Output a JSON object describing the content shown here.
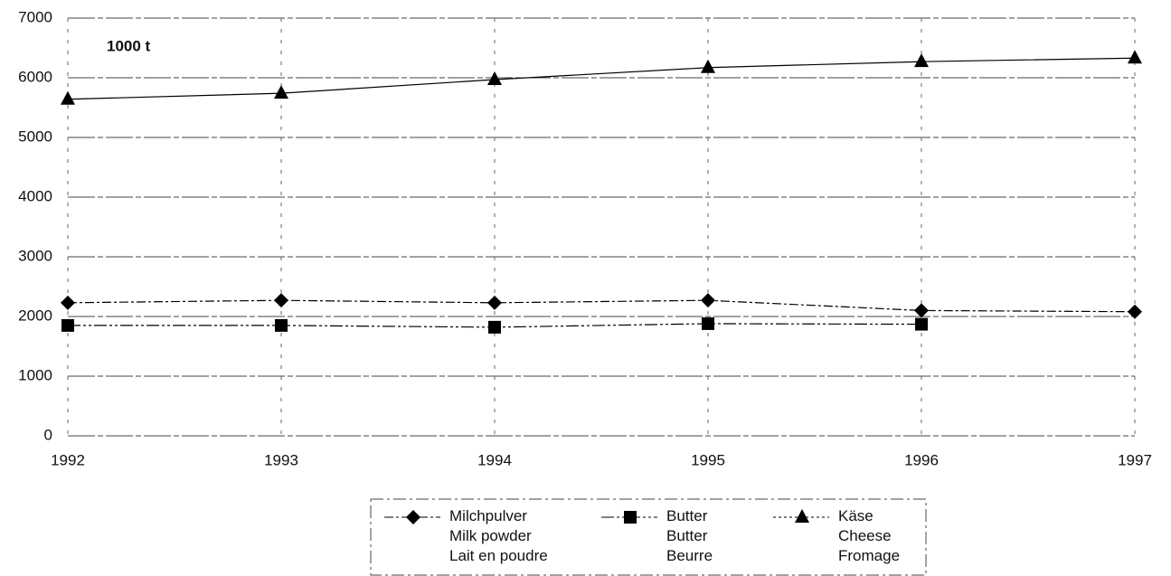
{
  "chart_data": {
    "type": "line",
    "annotations": [
      "1000 t"
    ],
    "x": [
      1992,
      1993,
      1994,
      1995,
      1996,
      1997
    ],
    "xlim": [
      1992,
      1997
    ],
    "xticks": [
      1992,
      1993,
      1994,
      1995,
      1996,
      1997
    ],
    "ylim": [
      0,
      7000
    ],
    "yticks": [
      0,
      1000,
      2000,
      3000,
      4000,
      5000,
      6000,
      7000
    ],
    "grid": true,
    "legend": "bottom",
    "series": [
      {
        "name": "Milchpulver\nMilk powder\nLait en poudre",
        "color": "#000000",
        "marker": "diamond",
        "values": [
          2230,
          2270,
          2230,
          2270,
          2100,
          2080
        ]
      },
      {
        "name": "Butter\nButter\nBeurre",
        "color": "#000000",
        "marker": "square",
        "values": [
          1850,
          1850,
          1820,
          1880,
          1870,
          null
        ]
      },
      {
        "name": "Käse\nCheese\nFromage",
        "color": "#000000",
        "marker": "triangle",
        "values": [
          5640,
          5740,
          5970,
          6170,
          6270,
          6330
        ]
      }
    ]
  }
}
